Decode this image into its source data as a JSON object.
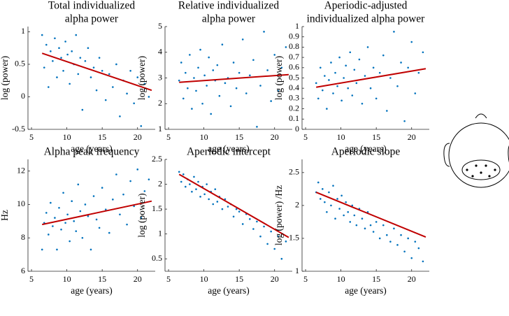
{
  "chart_data": [
    {
      "type": "scatter",
      "title": [
        "Total individualized",
        "alpha power"
      ],
      "xlabel": "age (years)",
      "ylabel": "log (power)",
      "xlim": [
        4.5,
        22.5
      ],
      "xticks": [
        5,
        10,
        15,
        20
      ],
      "ylim": [
        -0.5,
        1.08
      ],
      "yticks": [
        -0.5,
        0,
        0.5,
        1
      ],
      "color": "#0072bd",
      "x": [
        6.5,
        6.8,
        7.1,
        7.4,
        7.7,
        8.0,
        8.3,
        8.6,
        8.9,
        9.2,
        9.5,
        9.8,
        10.1,
        10.4,
        10.7,
        11.0,
        11.3,
        11.6,
        11.9,
        12.2,
        12.6,
        13.0,
        13.4,
        13.8,
        14.2,
        14.6,
        15.0,
        15.5,
        16.0,
        16.5,
        17.0,
        17.5,
        18.0,
        18.5,
        19.0,
        19.5,
        20.0,
        20.5,
        21.0,
        21.6
      ],
      "y": [
        0.95,
        0.45,
        0.8,
        0.15,
        0.7,
        0.55,
        0.9,
        0.3,
        0.75,
        0.6,
        0.4,
        0.85,
        0.65,
        0.2,
        0.7,
        0.5,
        0.95,
        0.35,
        0.6,
        -0.2,
        0.55,
        0.75,
        0.3,
        0.45,
        0.1,
        0.6,
        0.4,
        -0.05,
        0.35,
        0.15,
        0.5,
        -0.3,
        0.25,
        0.05,
        0.4,
        -0.1,
        0.3,
        -0.45,
        0.2,
        0.0
      ],
      "fit": {
        "x": [
          6.5,
          22
        ],
        "y": [
          0.67,
          0.1
        ],
        "color": "#c00000"
      }
    },
    {
      "type": "scatter",
      "title": [
        "Relative individualized",
        "alpha power"
      ],
      "xlabel": "age (years)",
      "ylabel": "log (power)",
      "xlim": [
        4.5,
        22.5
      ],
      "xticks": [
        5,
        10,
        15,
        20
      ],
      "ylim": [
        1,
        5
      ],
      "yticks": [
        1,
        2,
        3,
        4,
        5
      ],
      "color": "#0072bd",
      "x": [
        6.5,
        6.8,
        7.1,
        7.4,
        7.7,
        8.0,
        8.3,
        8.6,
        8.9,
        9.2,
        9.5,
        9.8,
        10.1,
        10.4,
        10.7,
        11.0,
        11.3,
        11.6,
        11.9,
        12.2,
        12.6,
        13.0,
        13.4,
        13.8,
        14.2,
        14.6,
        15.0,
        15.5,
        16.0,
        16.5,
        17.0,
        17.5,
        18.0,
        18.5,
        19.0,
        19.5,
        20.0,
        20.5,
        21.0,
        21.6
      ],
      "y": [
        2.9,
        3.6,
        2.2,
        3.2,
        2.6,
        3.9,
        1.8,
        3.0,
        2.5,
        3.4,
        4.1,
        2.0,
        3.1,
        2.7,
        3.8,
        1.6,
        3.3,
        2.9,
        3.5,
        2.3,
        4.3,
        2.8,
        3.0,
        1.9,
        3.6,
        2.6,
        3.2,
        4.5,
        2.4,
        3.1,
        3.7,
        1.1,
        2.7,
        4.8,
        3.3,
        2.1,
        3.9,
        2.5,
        3.4,
        4.2
      ],
      "fit": {
        "x": [
          6.5,
          22
        ],
        "y": [
          2.83,
          3.13
        ],
        "color": "#c00000"
      }
    },
    {
      "type": "scatter",
      "title": [
        "Aperiodic-adjusted",
        "individualized alpha power"
      ],
      "xlabel": "age (years)",
      "ylabel": "log (power)",
      "xlim": [
        4.5,
        22.5
      ],
      "xticks": [
        5,
        10,
        15,
        20
      ],
      "ylim": [
        0,
        1
      ],
      "yticks": [
        0,
        0.1,
        0.2,
        0.3,
        0.4,
        0.5,
        0.6,
        0.7,
        0.8,
        0.9,
        1
      ],
      "color": "#0072bd",
      "x": [
        6.5,
        6.8,
        7.1,
        7.4,
        7.7,
        8.0,
        8.3,
        8.6,
        8.9,
        9.2,
        9.5,
        9.8,
        10.1,
        10.4,
        10.7,
        11.0,
        11.3,
        11.6,
        11.9,
        12.2,
        12.6,
        13.0,
        13.4,
        13.8,
        14.2,
        14.6,
        15.0,
        15.5,
        16.0,
        16.5,
        17.0,
        17.5,
        18.0,
        18.5,
        19.0,
        19.5,
        20.0,
        20.5,
        21.0,
        21.6
      ],
      "y": [
        0.45,
        0.3,
        0.6,
        0.38,
        0.52,
        0.2,
        0.48,
        0.65,
        0.35,
        0.55,
        0.42,
        0.7,
        0.28,
        0.5,
        0.62,
        0.4,
        0.75,
        0.33,
        0.58,
        0.45,
        0.68,
        0.25,
        0.52,
        0.8,
        0.4,
        0.6,
        0.3,
        0.55,
        0.72,
        0.18,
        0.5,
        0.95,
        0.42,
        0.65,
        0.08,
        0.6,
        0.85,
        0.35,
        0.55,
        0.75
      ],
      "fit": {
        "x": [
          6.5,
          22
        ],
        "y": [
          0.41,
          0.59
        ],
        "color": "#c00000"
      }
    },
    {
      "type": "scatter",
      "title": [
        "Alpha peak frequency"
      ],
      "xlabel": "age (years)",
      "ylabel": "Hz",
      "xlim": [
        4.5,
        22.5
      ],
      "xticks": [
        5,
        10,
        15,
        20
      ],
      "ylim": [
        6,
        12.7
      ],
      "yticks": [
        6,
        8,
        10,
        12
      ],
      "color": "#0072bd",
      "x": [
        6.5,
        6.8,
        7.1,
        7.4,
        7.7,
        8.0,
        8.3,
        8.6,
        8.9,
        9.2,
        9.5,
        9.8,
        10.1,
        10.4,
        10.7,
        11.0,
        11.3,
        11.6,
        11.9,
        12.2,
        12.6,
        13.0,
        13.4,
        13.8,
        14.2,
        14.6,
        15.0,
        15.5,
        16.0,
        16.5,
        17.0,
        17.5,
        18.0,
        18.5,
        19.0,
        19.5,
        20.0,
        20.5,
        21.0,
        21.6
      ],
      "y": [
        7.3,
        8.9,
        9.5,
        8.2,
        10.1,
        8.7,
        9.2,
        7.3,
        9.8,
        8.5,
        10.7,
        8.9,
        9.4,
        7.8,
        10.2,
        9.0,
        8.4,
        11.2,
        9.6,
        8.0,
        10.0,
        9.3,
        7.3,
        10.5,
        9.1,
        8.6,
        11.0,
        9.7,
        8.3,
        10.3,
        11.8,
        9.4,
        10.6,
        8.8,
        11.4,
        9.9,
        12.1,
        9.2,
        10.8,
        11.5
      ],
      "fit": {
        "x": [
          6.5,
          22
        ],
        "y": [
          8.8,
          10.2
        ],
        "color": "#c00000"
      }
    },
    {
      "type": "scatter",
      "title": [
        "Aperiodic intercept"
      ],
      "xlabel": "age (years)",
      "ylabel": "log (power)",
      "xlim": [
        4.5,
        22.5
      ],
      "xticks": [
        5,
        10,
        15,
        20
      ],
      "ylim": [
        0.25,
        2.5
      ],
      "yticks": [
        0.5,
        1,
        1.5,
        2,
        2.5
      ],
      "color": "#0072bd",
      "x": [
        6.5,
        6.8,
        7.1,
        7.4,
        7.7,
        8.0,
        8.3,
        8.6,
        8.9,
        9.2,
        9.5,
        9.8,
        10.1,
        10.4,
        10.7,
        11.0,
        11.3,
        11.6,
        11.9,
        12.2,
        12.6,
        13.0,
        13.4,
        13.8,
        14.2,
        14.6,
        15.0,
        15.5,
        16.0,
        16.5,
        17.0,
        17.5,
        18.0,
        18.5,
        19.0,
        19.5,
        20.0,
        20.5,
        21.0,
        21.6
      ],
      "y": [
        2.25,
        2.05,
        2.2,
        1.95,
        2.1,
        2.0,
        1.85,
        2.15,
        1.9,
        2.05,
        1.75,
        1.95,
        1.8,
        2.0,
        1.7,
        1.85,
        1.6,
        1.9,
        1.65,
        1.75,
        1.5,
        1.7,
        1.55,
        1.6,
        1.35,
        1.5,
        1.45,
        1.2,
        1.4,
        1.3,
        1.1,
        1.25,
        0.95,
        1.15,
        0.8,
        1.05,
        0.7,
        0.95,
        0.5,
        0.85
      ],
      "fit": {
        "x": [
          6.5,
          22
        ],
        "y": [
          2.2,
          0.93
        ],
        "color": "#c00000"
      }
    },
    {
      "type": "scatter",
      "title": [
        "Aperiodic slope"
      ],
      "xlabel": "age (years)",
      "ylabel": "log (power) /Hz",
      "xlim": [
        4.5,
        22.5
      ],
      "xticks": [
        5,
        10,
        15,
        20
      ],
      "ylim": [
        1,
        2.7
      ],
      "yticks": [
        1,
        1.5,
        2,
        2.5
      ],
      "color": "#0072bd",
      "x": [
        6.5,
        6.8,
        7.1,
        7.4,
        7.7,
        8.0,
        8.3,
        8.6,
        8.9,
        9.2,
        9.5,
        9.8,
        10.1,
        10.4,
        10.7,
        11.0,
        11.3,
        11.6,
        11.9,
        12.2,
        12.6,
        13.0,
        13.4,
        13.8,
        14.2,
        14.6,
        15.0,
        15.5,
        16.0,
        16.5,
        17.0,
        17.5,
        18.0,
        18.5,
        19.0,
        19.5,
        20.0,
        20.5,
        21.0,
        21.6
      ],
      "y": [
        2.2,
        2.35,
        2.1,
        2.25,
        2.05,
        1.9,
        2.2,
        2.0,
        2.3,
        1.8,
        2.1,
        1.95,
        2.15,
        1.85,
        2.05,
        1.9,
        1.75,
        2.0,
        1.85,
        1.7,
        1.95,
        1.8,
        1.65,
        1.9,
        1.7,
        1.6,
        1.75,
        1.5,
        1.7,
        1.55,
        1.45,
        1.65,
        1.4,
        1.55,
        1.3,
        1.5,
        1.2,
        1.45,
        1.35,
        1.15
      ],
      "fit": {
        "x": [
          6.5,
          22
        ],
        "y": [
          2.2,
          1.52
        ],
        "color": "#c00000"
      }
    }
  ]
}
